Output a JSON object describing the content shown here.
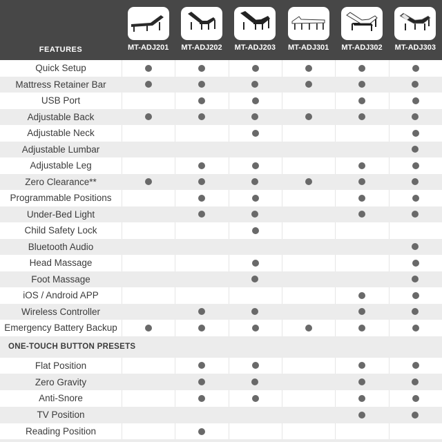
{
  "header": {
    "features_label": "FEATURES",
    "products": [
      {
        "model": "MT-ADJ201",
        "icon": "bed-dark-flat-back-raised-icon"
      },
      {
        "model": "MT-ADJ202",
        "icon": "bed-dark-back-and-knee-raised-icon"
      },
      {
        "model": "MT-ADJ203",
        "icon": "bed-dark-contoured-back-and-knee-raised-icon"
      },
      {
        "model": "MT-ADJ301",
        "icon": "bed-light-frame-flat-icon"
      },
      {
        "model": "MT-ADJ302",
        "icon": "bed-light-deck-back-and-foot-raised-icon"
      },
      {
        "model": "MT-ADJ303",
        "icon": "bed-dark-mattress-back-and-foot-raised-icon"
      }
    ]
  },
  "features": [
    {
      "label": "Quick Setup",
      "availability": [
        1,
        1,
        1,
        1,
        1,
        1
      ]
    },
    {
      "label": "Mattress Retainer Bar",
      "availability": [
        1,
        1,
        1,
        1,
        1,
        1
      ]
    },
    {
      "label": "USB Port",
      "availability": [
        0,
        1,
        1,
        0,
        1,
        1
      ]
    },
    {
      "label": "Adjustable Back",
      "availability": [
        1,
        1,
        1,
        1,
        1,
        1
      ]
    },
    {
      "label": "Adjustable Neck",
      "availability": [
        0,
        0,
        1,
        0,
        0,
        1
      ]
    },
    {
      "label": "Adjustable Lumbar",
      "availability": [
        0,
        0,
        0,
        0,
        0,
        1
      ]
    },
    {
      "label": "Adjustable Leg",
      "availability": [
        0,
        1,
        1,
        0,
        1,
        1
      ]
    },
    {
      "label": "Zero Clearance**",
      "availability": [
        1,
        1,
        1,
        1,
        1,
        1
      ]
    },
    {
      "label": "Programmable Positions",
      "availability": [
        0,
        1,
        1,
        0,
        1,
        1
      ]
    },
    {
      "label": "Under-Bed Light",
      "availability": [
        0,
        1,
        1,
        0,
        1,
        1
      ]
    },
    {
      "label": "Child Safety Lock",
      "availability": [
        0,
        0,
        1,
        0,
        0,
        0
      ]
    },
    {
      "label": "Bluetooth Audio",
      "availability": [
        0,
        0,
        0,
        0,
        0,
        1
      ]
    },
    {
      "label": "Head Massage",
      "availability": [
        0,
        0,
        1,
        0,
        0,
        1
      ]
    },
    {
      "label": "Foot Massage",
      "availability": [
        0,
        0,
        1,
        0,
        0,
        1
      ]
    },
    {
      "label": "iOS / Android APP",
      "availability": [
        0,
        0,
        0,
        0,
        1,
        1
      ]
    },
    {
      "label": "Wireless Controller",
      "availability": [
        0,
        1,
        1,
        0,
        1,
        1
      ]
    },
    {
      "label": "Emergency Battery Backup",
      "availability": [
        1,
        1,
        1,
        1,
        1,
        1
      ]
    }
  ],
  "one_touch_presets": {
    "title": "ONE-TOUCH BUTTON PRESETS",
    "rows": [
      {
        "label": "Flat Position",
        "availability": [
          0,
          1,
          1,
          0,
          1,
          1
        ]
      },
      {
        "label": "Zero Gravity",
        "availability": [
          0,
          1,
          1,
          0,
          1,
          1
        ]
      },
      {
        "label": "Anti-Snore",
        "availability": [
          0,
          1,
          1,
          0,
          1,
          1
        ]
      },
      {
        "label": "TV Position",
        "availability": [
          0,
          0,
          0,
          0,
          1,
          1
        ]
      },
      {
        "label": "Reading Position",
        "availability": [
          0,
          1,
          0,
          0,
          0,
          0
        ]
      }
    ]
  },
  "icons": {
    "availability": "filled-circle-dot"
  },
  "colors": {
    "header_bg": "#474747",
    "row_alt_bg": "#ececec",
    "dot": "#696969",
    "divider": "#e5e5e5",
    "label_text": "#3b3b3b",
    "header_text": "#ffffff"
  }
}
